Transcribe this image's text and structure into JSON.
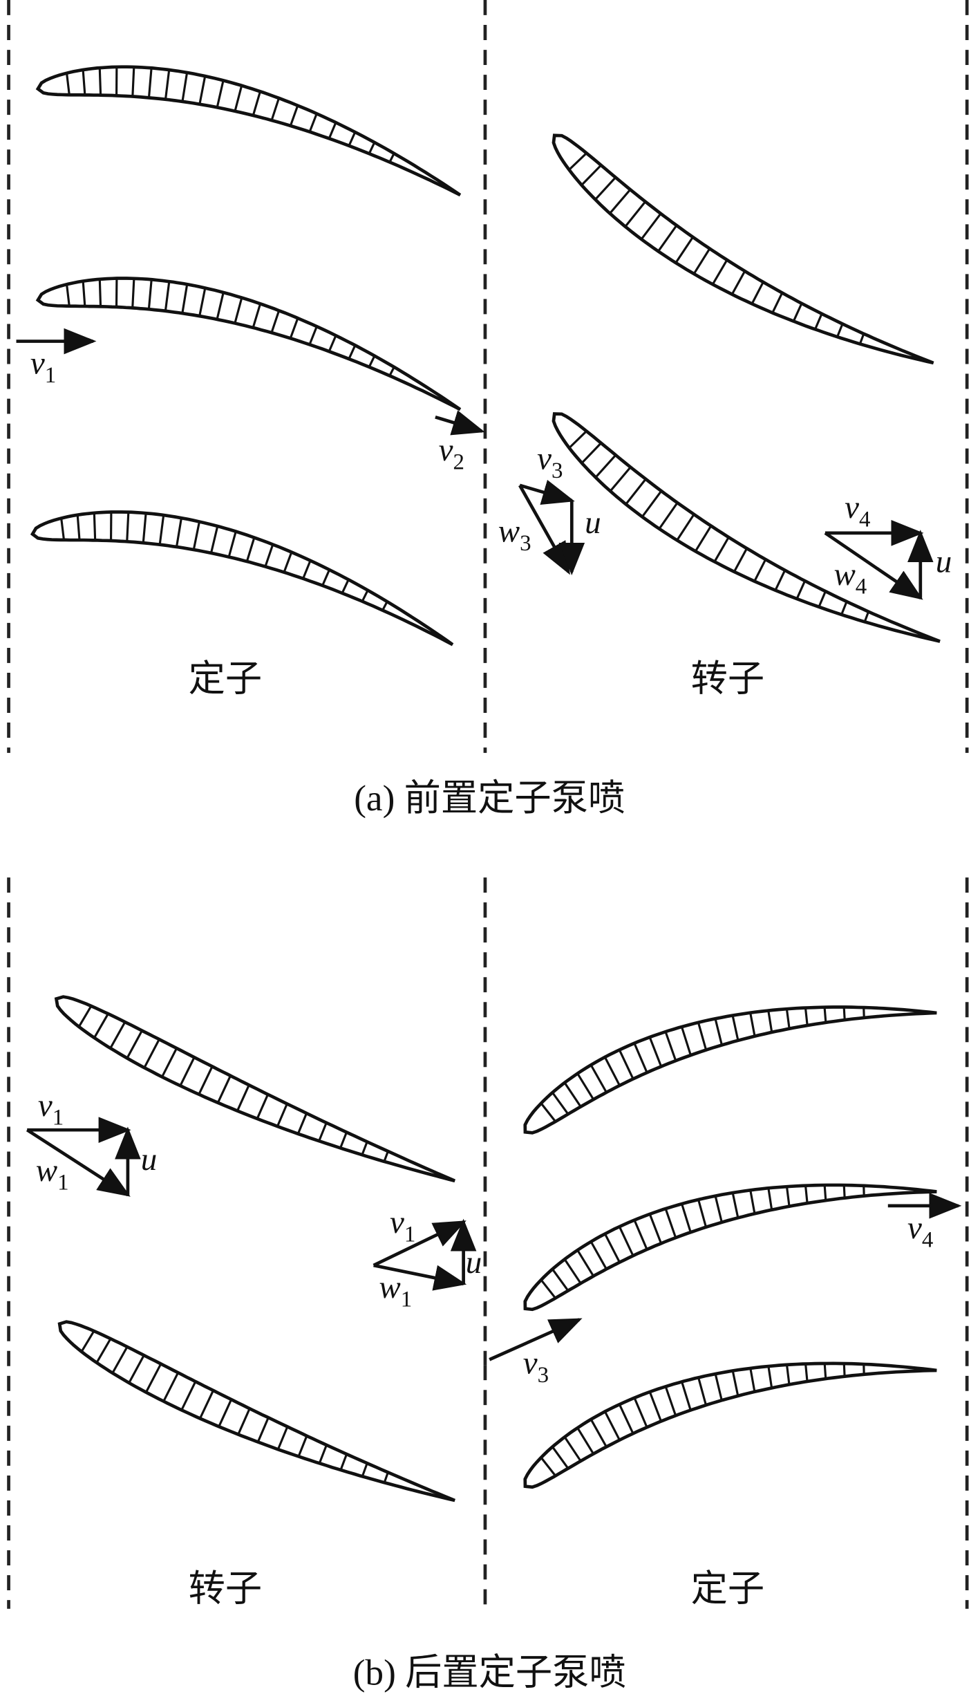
{
  "panel_a": {
    "caption": "(a) 前置定子泵喷",
    "stage_labels": [
      "定子",
      "转子"
    ],
    "vectors": [
      {
        "symbol": "v",
        "sub": "1"
      },
      {
        "symbol": "v",
        "sub": "2"
      },
      {
        "symbol": "v",
        "sub": "3"
      },
      {
        "symbol": "w",
        "sub": "3"
      },
      {
        "symbol": "u"
      },
      {
        "symbol": "v",
        "sub": "4"
      },
      {
        "symbol": "w",
        "sub": "4"
      },
      {
        "symbol": "u"
      }
    ]
  },
  "panel_b": {
    "caption": "(b) 后置定子泵喷",
    "stage_labels": [
      "转子",
      "定子"
    ],
    "vectors": [
      {
        "symbol": "v",
        "sub": "1"
      },
      {
        "symbol": "w",
        "sub": "1"
      },
      {
        "symbol": "u"
      },
      {
        "symbol": "v",
        "sub": "1"
      },
      {
        "symbol": "w",
        "sub": "1"
      },
      {
        "symbol": "u"
      },
      {
        "symbol": "v",
        "sub": "3"
      },
      {
        "symbol": "v",
        "sub": "4"
      }
    ]
  }
}
